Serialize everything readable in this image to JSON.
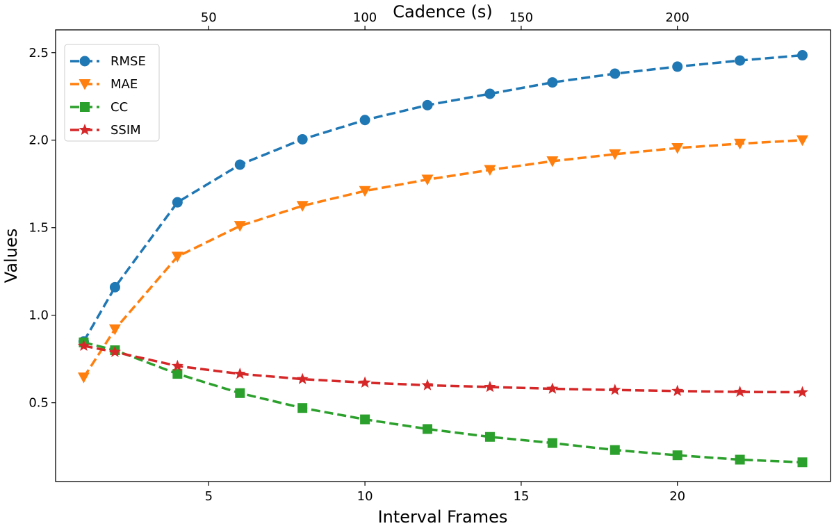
{
  "chart_data": {
    "type": "line",
    "xlabel": "Interval Frames",
    "ylabel": "Values",
    "x2label": "Cadence (s)",
    "x": [
      1,
      2,
      4,
      6,
      8,
      10,
      12,
      14,
      16,
      18,
      20,
      22,
      24
    ],
    "xlim": [
      0.1,
      24.9
    ],
    "ylim": [
      0.05,
      2.63
    ],
    "xticks": [
      5,
      10,
      15,
      20
    ],
    "yticks": [
      0.5,
      1.0,
      1.5,
      2.0,
      2.5
    ],
    "ytick_labels": [
      "0.5",
      "1.0",
      "1.5",
      "2.0",
      "2.5"
    ],
    "x2ticks": [
      50,
      100,
      150,
      200
    ],
    "x2_per_x": 10,
    "legend_position": "top-left",
    "grid": false,
    "series": [
      {
        "name": "RMSE",
        "color": "#1f77b4",
        "marker": "circle",
        "values": [
          0.85,
          1.16,
          1.645,
          1.86,
          2.005,
          2.115,
          2.2,
          2.265,
          2.33,
          2.38,
          2.42,
          2.455,
          2.485
        ]
      },
      {
        "name": "MAE",
        "color": "#ff7f0e",
        "marker": "triangle-down",
        "values": [
          0.645,
          0.92,
          1.335,
          1.51,
          1.625,
          1.71,
          1.775,
          1.83,
          1.88,
          1.92,
          1.955,
          1.98,
          2.0
        ]
      },
      {
        "name": "CC",
        "color": "#2ca02c",
        "marker": "square",
        "values": [
          0.845,
          0.8,
          0.665,
          0.555,
          0.47,
          0.405,
          0.35,
          0.305,
          0.27,
          0.23,
          0.2,
          0.175,
          0.16
        ]
      },
      {
        "name": "SSIM",
        "color": "#d62728",
        "marker": "star",
        "values": [
          0.825,
          0.79,
          0.71,
          0.665,
          0.635,
          0.615,
          0.6,
          0.59,
          0.58,
          0.573,
          0.567,
          0.562,
          0.56
        ]
      }
    ]
  }
}
